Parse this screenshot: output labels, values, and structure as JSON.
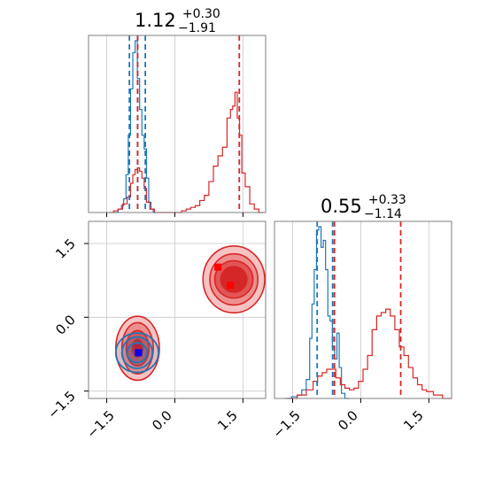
{
  "chart_data": [
    {
      "type": "histogram",
      "panel": "param-1-marginal",
      "title": {
        "value": "1.12",
        "plus": "+0.30",
        "minus": "−1.91"
      },
      "xlim": [
        -1.9,
        2.0
      ],
      "grid": true,
      "series": [
        {
          "color": "#1f77b4",
          "bin_centers": [
            -1.3,
            -1.2,
            -1.15,
            -1.1,
            -1.05,
            -1.0,
            -0.95,
            -0.9,
            -0.85,
            -0.8,
            -0.75,
            -0.7,
            -0.65,
            -0.6,
            -0.55,
            -0.5,
            -0.45
          ],
          "heights": [
            0.0,
            0.02,
            0.04,
            0.08,
            0.22,
            0.45,
            0.72,
            0.93,
            1.0,
            0.78,
            0.6,
            0.45,
            0.37,
            0.2,
            0.06,
            0.02,
            0.0
          ]
        },
        {
          "color": "#d62728",
          "bin_centers": [
            -1.4,
            -1.3,
            -1.2,
            -1.1,
            -1.0,
            -0.95,
            -0.9,
            -0.85,
            -0.8,
            -0.75,
            -0.7,
            -0.65,
            -0.6,
            -0.5,
            -0.4,
            0.1,
            0.2,
            0.3,
            0.4,
            0.5,
            0.6,
            0.7,
            0.8,
            0.9,
            1.0,
            1.1,
            1.2,
            1.25,
            1.3,
            1.35,
            1.4,
            1.45,
            1.5,
            1.6,
            1.7,
            1.8,
            1.9
          ],
          "heights": [
            0.0,
            0.01,
            0.02,
            0.05,
            0.09,
            0.17,
            0.22,
            0.25,
            0.26,
            0.24,
            0.2,
            0.14,
            0.06,
            0.02,
            0.0,
            0.0,
            0.01,
            0.02,
            0.03,
            0.04,
            0.07,
            0.1,
            0.18,
            0.27,
            0.33,
            0.38,
            0.55,
            0.6,
            0.62,
            0.7,
            0.55,
            0.45,
            0.23,
            0.15,
            0.05,
            0.02,
            0.0
          ]
        }
      ],
      "quantile_lines": [
        {
          "color": "#1f77b4",
          "values": [
            -1.0,
            -0.82,
            -0.65
          ]
        },
        {
          "color": "#d62728",
          "values": [
            -0.82,
            1.42
          ]
        }
      ]
    },
    {
      "type": "histogram",
      "panel": "param-2-marginal",
      "title": {
        "value": "0.55",
        "plus": "+0.33",
        "minus": "−1.14"
      },
      "xlim": [
        -1.9,
        2.0
      ],
      "xticks": [
        "−1.5",
        "0.0",
        "1.5"
      ],
      "grid": true,
      "series": [
        {
          "color": "#1f77b4",
          "bin_centers": [
            -1.6,
            -1.45,
            -1.35,
            -1.25,
            -1.15,
            -1.1,
            -1.05,
            -1.0,
            -0.95,
            -0.9,
            -0.85,
            -0.8,
            -0.75,
            -0.7,
            -0.65,
            -0.6,
            -0.55,
            -0.5,
            -0.45,
            -0.4,
            -0.3
          ],
          "heights": [
            0.0,
            0.01,
            0.02,
            0.05,
            0.11,
            0.35,
            0.55,
            0.75,
            0.98,
            1.0,
            0.88,
            0.92,
            0.75,
            0.48,
            0.45,
            0.3,
            0.23,
            0.38,
            0.18,
            0.03,
            0.0
          ]
        },
        {
          "color": "#d62728",
          "bin_centers": [
            -1.5,
            -1.3,
            -1.1,
            -1.0,
            -0.9,
            -0.8,
            -0.7,
            -0.6,
            -0.5,
            -0.4,
            -0.3,
            -0.2,
            -0.1,
            0.0,
            0.1,
            0.2,
            0.3,
            0.4,
            0.5,
            0.6,
            0.7,
            0.8,
            0.9,
            1.0,
            1.1,
            1.2,
            1.3,
            1.4,
            1.5,
            1.7,
            1.9
          ],
          "heights": [
            0.0,
            0.02,
            0.05,
            0.1,
            0.13,
            0.15,
            0.17,
            0.17,
            0.12,
            0.08,
            0.06,
            0.05,
            0.06,
            0.1,
            0.17,
            0.25,
            0.4,
            0.48,
            0.5,
            0.52,
            0.48,
            0.4,
            0.3,
            0.25,
            0.18,
            0.12,
            0.08,
            0.05,
            0.04,
            0.02,
            0.0
          ]
        }
      ],
      "quantile_lines": [
        {
          "color": "#1f77b4",
          "values": [
            -0.96,
            -0.62
          ]
        },
        {
          "color": "#d62728",
          "values": [
            -0.58,
            0.88
          ]
        }
      ]
    },
    {
      "type": "contour",
      "panel": "joint",
      "xlim": [
        -1.9,
        2.0
      ],
      "ylim": [
        -1.65,
        1.95
      ],
      "xticks": [
        "−1.5",
        "0.0",
        "1.5"
      ],
      "yticks": [
        "−1.5",
        "0.0",
        "1.5"
      ],
      "grid": true,
      "series": [
        {
          "color": "#d62728",
          "modes": [
            {
              "cx": -0.82,
              "cy": -0.63,
              "rx": [
                0.48,
                0.36,
                0.25,
                0.12
              ],
              "ry": [
                0.65,
                0.52,
                0.36,
                0.18
              ]
            },
            {
              "cx": 1.3,
              "cy": 0.77,
              "rx": [
                0.68,
                0.55,
                0.42,
                0.3
              ],
              "ry": [
                0.68,
                0.52,
                0.38,
                0.26
              ]
            }
          ],
          "markers": [
            {
              "x": 0.95,
              "y": 1.02
            },
            {
              "x": 1.22,
              "y": 0.65
            },
            {
              "x": -0.82,
              "y": -0.62
            }
          ]
        },
        {
          "color": "#1f77b4",
          "modes": [
            {
              "cx": -0.83,
              "cy": -0.72,
              "rx": [
                0.47,
                0.35,
                0.22
              ],
              "ry": [
                0.4,
                0.32,
                0.2
              ]
            }
          ],
          "markers": [
            {
              "x": -0.8,
              "y": -0.72
            }
          ]
        }
      ]
    }
  ]
}
